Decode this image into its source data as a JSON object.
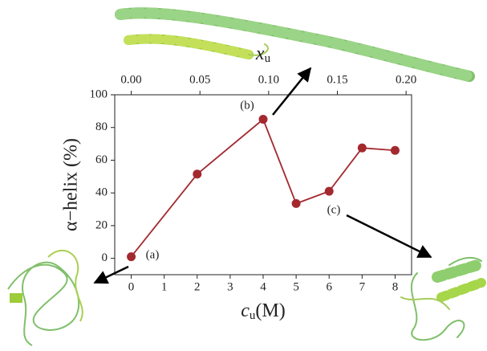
{
  "chart_data": {
    "type": "line",
    "ylabel": "α−helix (%)",
    "xlabel": [
      "c",
      "u",
      "(M)"
    ],
    "x2label": [
      "x",
      "u"
    ],
    "x": [
      0,
      2,
      4,
      5,
      6,
      7,
      8
    ],
    "series": [
      {
        "color": "#a3292f",
        "values": [
          1,
          51.5,
          85,
          33.5,
          41,
          67.5,
          66
        ]
      }
    ],
    "xlim": [
      -0.5,
      8.5
    ],
    "xticks": [
      0,
      1,
      2,
      3,
      4,
      5,
      6,
      7,
      8
    ],
    "ylim": [
      -10,
      100
    ],
    "yticks": [
      0,
      20,
      40,
      60,
      80,
      100
    ],
    "x2lim": [
      -0.012,
      0.204
    ],
    "x2ticks": [
      {
        "value": 0,
        "label": "0.00"
      },
      {
        "value": 0.05,
        "label": "0.05"
      },
      {
        "value": 0.1,
        "label": "0.10"
      },
      {
        "value": 0.15,
        "label": "0.15"
      },
      {
        "value": 0.2,
        "label": "0.20"
      }
    ],
    "annotations": [
      "(a)",
      "(b)",
      "(c)"
    ]
  }
}
